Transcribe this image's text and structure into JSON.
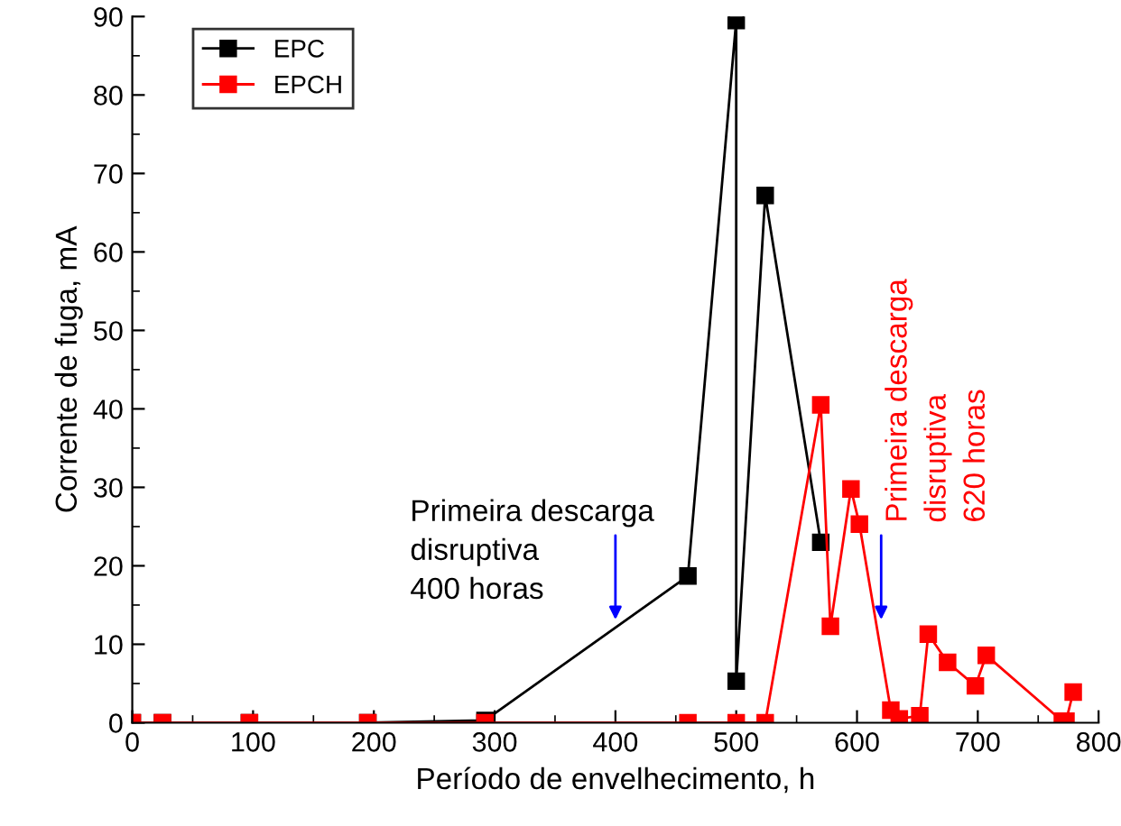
{
  "chart_data": {
    "type": "line",
    "xlabel": "Período de envelhecimento, h",
    "ylabel": "Corrente de fuga, mA",
    "series": [
      {
        "name": "EPC",
        "color": "#000000",
        "x": [
          0,
          25,
          97,
          195,
          292,
          460,
          500,
          500,
          524,
          570
        ],
        "values": [
          0,
          0,
          0,
          0,
          0.3,
          18.7,
          89.5,
          5.3,
          67.2,
          23
        ]
      },
      {
        "name": "EPCH",
        "color": "#ff0000",
        "x": [
          0,
          25,
          97,
          195,
          292,
          460,
          500,
          524,
          570,
          578,
          595,
          602,
          628,
          635,
          652,
          659,
          675,
          698,
          707,
          770,
          773,
          779
        ],
        "values": [
          0,
          0,
          0,
          0,
          0,
          0,
          0,
          0,
          40.5,
          12.3,
          29.8,
          25.3,
          1.6,
          0.5,
          0.9,
          11.3,
          7.7,
          4.7,
          8.6,
          0.2,
          0.2,
          3.9
        ]
      }
    ],
    "annotations": [
      {
        "text": "Primeira descarga\ndisruptiva\n400 horas",
        "x": 400,
        "y": 12.5
      },
      {
        "text": "Primeira descarga\ndisruptiva\n620 horas",
        "x": 620,
        "y": 12.5
      }
    ],
    "xlim": [
      0,
      800
    ],
    "xticks": [
      0,
      100,
      200,
      300,
      400,
      500,
      600,
      700,
      800
    ],
    "ylim": [
      0,
      90
    ],
    "yticks": [
      0,
      10,
      20,
      30,
      40,
      50,
      60,
      70,
      80,
      90
    ],
    "marker": "square",
    "line_style": "solid",
    "legend": "top left",
    "grid": false
  }
}
